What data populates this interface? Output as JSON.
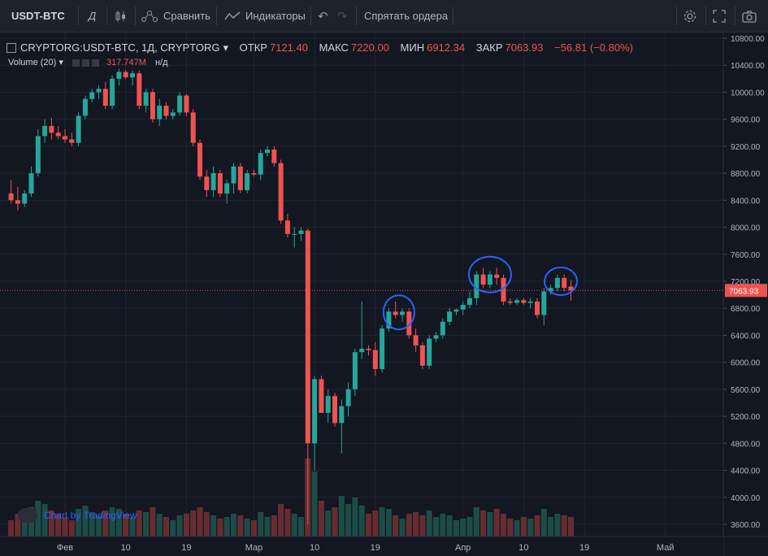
{
  "toolbar": {
    "symbol": "USDT-BTC",
    "interval": "Д",
    "compare_label": "Сравнить",
    "indicators_label": "Индикаторы",
    "hide_orders_label": "Спрятать ордера"
  },
  "legend": {
    "title": "CRYPTORG:USDT-BTC, 1Д, CRYPTORG",
    "open_label": "ОТКР",
    "open": "7121.40",
    "high_label": "МАКС",
    "high": "7220.00",
    "low_label": "МИН",
    "low": "6912.34",
    "close_label": "ЗАКР",
    "close": "7063.93",
    "change": "−56.81 (−0.80%)"
  },
  "volume_legend": {
    "label": "Volume (20)",
    "value": "317.747M",
    "na": "н/д"
  },
  "watermark": "Chart by TradingView",
  "colors": {
    "up": "#26a69a",
    "down": "#ef5350",
    "background": "#131722",
    "annotation": "#2962ff"
  },
  "chart_data": {
    "type": "candlestick",
    "ylim": [
      3400,
      10900
    ],
    "yticks": [
      3600,
      4000,
      4400,
      4800,
      5200,
      5600,
      6000,
      6400,
      6800,
      7200,
      7600,
      8000,
      8400,
      8800,
      9200,
      9600,
      10000,
      10400,
      10800
    ],
    "ytick_labels": [
      "3600.00",
      "4000.00",
      "4400.00",
      "4800.00",
      "5200.00",
      "5600.00",
      "6000.00",
      "6400.00",
      "6800.00",
      "7200.00",
      "7600.00",
      "8000.00",
      "8400.00",
      "8800.00",
      "9200.00",
      "9600.00",
      "10000.00",
      "10400.00",
      "10800.00"
    ],
    "xticks": [
      {
        "label": "Фев",
        "day": 0
      },
      {
        "label": "10",
        "day": 9
      },
      {
        "label": "19",
        "day": 18
      },
      {
        "label": "Мар",
        "day": 28
      },
      {
        "label": "10",
        "day": 37
      },
      {
        "label": "19",
        "day": 46
      },
      {
        "label": "Апр",
        "day": 59
      },
      {
        "label": "10",
        "day": 68
      },
      {
        "label": "19",
        "day": 77
      },
      {
        "label": "Май",
        "day": 89
      }
    ],
    "current_price": 7063.93,
    "current_price_label": "7063.93",
    "candles": [
      {
        "day": -8,
        "o": 8500,
        "h": 8700,
        "l": 8350,
        "c": 8400,
        "v": 10
      },
      {
        "day": -7,
        "o": 8400,
        "h": 8600,
        "l": 8250,
        "c": 8350,
        "v": 14
      },
      {
        "day": -6,
        "o": 8350,
        "h": 8550,
        "l": 8300,
        "c": 8500,
        "v": 12
      },
      {
        "day": -5,
        "o": 8500,
        "h": 8900,
        "l": 8450,
        "c": 8800,
        "v": 18
      },
      {
        "day": -4,
        "o": 8800,
        "h": 9450,
        "l": 8750,
        "c": 9350,
        "v": 22
      },
      {
        "day": -3,
        "o": 9350,
        "h": 9600,
        "l": 9250,
        "c": 9500,
        "v": 20
      },
      {
        "day": -2,
        "o": 9500,
        "h": 9620,
        "l": 9300,
        "c": 9400,
        "v": 16
      },
      {
        "day": -1,
        "o": 9400,
        "h": 9500,
        "l": 9300,
        "c": 9350,
        "v": 14
      },
      {
        "day": 0,
        "o": 9350,
        "h": 9450,
        "l": 9250,
        "c": 9300,
        "v": 12
      },
      {
        "day": 1,
        "o": 9300,
        "h": 9400,
        "l": 9200,
        "c": 9250,
        "v": 10
      },
      {
        "day": 2,
        "o": 9250,
        "h": 9700,
        "l": 9200,
        "c": 9650,
        "v": 17
      },
      {
        "day": 3,
        "o": 9650,
        "h": 9950,
        "l": 9600,
        "c": 9900,
        "v": 19
      },
      {
        "day": 4,
        "o": 9900,
        "h": 10050,
        "l": 9850,
        "c": 10000,
        "v": 15
      },
      {
        "day": 5,
        "o": 10000,
        "h": 10100,
        "l": 9900,
        "c": 10050,
        "v": 13
      },
      {
        "day": 6,
        "o": 10050,
        "h": 10150,
        "l": 9750,
        "c": 9800,
        "v": 16
      },
      {
        "day": 7,
        "o": 9800,
        "h": 10250,
        "l": 9750,
        "c": 10200,
        "v": 18
      },
      {
        "day": 8,
        "o": 10200,
        "h": 10350,
        "l": 10100,
        "c": 10300,
        "v": 17
      },
      {
        "day": 9,
        "o": 10300,
        "h": 10330,
        "l": 10200,
        "c": 10220,
        "v": 14
      },
      {
        "day": 10,
        "o": 10220,
        "h": 10320,
        "l": 10100,
        "c": 10280,
        "v": 12
      },
      {
        "day": 11,
        "o": 10280,
        "h": 10320,
        "l": 9750,
        "c": 9800,
        "v": 16
      },
      {
        "day": 12,
        "o": 9800,
        "h": 10050,
        "l": 9700,
        "c": 10000,
        "v": 15
      },
      {
        "day": 13,
        "o": 10000,
        "h": 10050,
        "l": 9550,
        "c": 9600,
        "v": 18
      },
      {
        "day": 14,
        "o": 9600,
        "h": 9900,
        "l": 9500,
        "c": 9800,
        "v": 14
      },
      {
        "day": 15,
        "o": 9800,
        "h": 9850,
        "l": 9600,
        "c": 9650,
        "v": 12
      },
      {
        "day": 16,
        "o": 9650,
        "h": 9750,
        "l": 9600,
        "c": 9700,
        "v": 10
      },
      {
        "day": 17,
        "o": 9700,
        "h": 10000,
        "l": 9650,
        "c": 9950,
        "v": 13
      },
      {
        "day": 18,
        "o": 9950,
        "h": 9970,
        "l": 9650,
        "c": 9700,
        "v": 14
      },
      {
        "day": 19,
        "o": 9700,
        "h": 9750,
        "l": 9200,
        "c": 9250,
        "v": 16
      },
      {
        "day": 20,
        "o": 9250,
        "h": 9300,
        "l": 8700,
        "c": 8750,
        "v": 18
      },
      {
        "day": 21,
        "o": 8750,
        "h": 8850,
        "l": 8450,
        "c": 8550,
        "v": 15
      },
      {
        "day": 22,
        "o": 8550,
        "h": 8900,
        "l": 8450,
        "c": 8800,
        "v": 13
      },
      {
        "day": 23,
        "o": 8800,
        "h": 8850,
        "l": 8450,
        "c": 8500,
        "v": 11
      },
      {
        "day": 24,
        "o": 8500,
        "h": 8700,
        "l": 8350,
        "c": 8650,
        "v": 12
      },
      {
        "day": 25,
        "o": 8650,
        "h": 8950,
        "l": 8500,
        "c": 8900,
        "v": 14
      },
      {
        "day": 26,
        "o": 8900,
        "h": 8950,
        "l": 8500,
        "c": 8550,
        "v": 13
      },
      {
        "day": 27,
        "o": 8550,
        "h": 8850,
        "l": 8500,
        "c": 8800,
        "v": 11
      },
      {
        "day": 28,
        "o": 8800,
        "h": 8850,
        "l": 8750,
        "c": 8780,
        "v": 10
      },
      {
        "day": 29,
        "o": 8780,
        "h": 9150,
        "l": 8700,
        "c": 9100,
        "v": 15
      },
      {
        "day": 30,
        "o": 9100,
        "h": 9200,
        "l": 9050,
        "c": 9150,
        "v": 12
      },
      {
        "day": 31,
        "o": 9150,
        "h": 9200,
        "l": 8900,
        "c": 8950,
        "v": 13
      },
      {
        "day": 32,
        "o": 8950,
        "h": 9000,
        "l": 8050,
        "c": 8100,
        "v": 20
      },
      {
        "day": 33,
        "o": 8100,
        "h": 8200,
        "l": 7850,
        "c": 7900,
        "v": 17
      },
      {
        "day": 34,
        "o": 7900,
        "h": 8000,
        "l": 7700,
        "c": 7900,
        "v": 14
      },
      {
        "day": 35,
        "o": 7900,
        "h": 8000,
        "l": 7800,
        "c": 7950,
        "v": 12
      },
      {
        "day": 36,
        "o": 7950,
        "h": 7980,
        "l": 3600,
        "c": 4800,
        "v": 48
      },
      {
        "day": 37,
        "o": 4800,
        "h": 5800,
        "l": 4400,
        "c": 5750,
        "v": 40
      },
      {
        "day": 38,
        "o": 5750,
        "h": 5800,
        "l": 5250,
        "c": 5250,
        "v": 22
      },
      {
        "day": 39,
        "o": 5250,
        "h": 5600,
        "l": 5100,
        "c": 5500,
        "v": 16
      },
      {
        "day": 40,
        "o": 5500,
        "h": 5550,
        "l": 5050,
        "c": 5100,
        "v": 18
      },
      {
        "day": 41,
        "o": 5100,
        "h": 5450,
        "l": 4650,
        "c": 5350,
        "v": 25
      },
      {
        "day": 42,
        "o": 5350,
        "h": 5700,
        "l": 5200,
        "c": 5600,
        "v": 20
      },
      {
        "day": 43,
        "o": 5600,
        "h": 6200,
        "l": 5500,
        "c": 6150,
        "v": 24
      },
      {
        "day": 44,
        "o": 6150,
        "h": 6900,
        "l": 6050,
        "c": 6200,
        "v": 19
      },
      {
        "day": 45,
        "o": 6200,
        "h": 6250,
        "l": 6100,
        "c": 6180,
        "v": 14
      },
      {
        "day": 46,
        "o": 6180,
        "h": 6300,
        "l": 5800,
        "c": 5900,
        "v": 16
      },
      {
        "day": 47,
        "o": 5900,
        "h": 6550,
        "l": 5850,
        "c": 6500,
        "v": 18
      },
      {
        "day": 48,
        "o": 6500,
        "h": 6800,
        "l": 6450,
        "c": 6750,
        "v": 17
      },
      {
        "day": 49,
        "o": 6750,
        "h": 6900,
        "l": 6650,
        "c": 6700,
        "v": 13
      },
      {
        "day": 50,
        "o": 6700,
        "h": 6800,
        "l": 6600,
        "c": 6750,
        "v": 11
      },
      {
        "day": 51,
        "o": 6750,
        "h": 6800,
        "l": 6350,
        "c": 6400,
        "v": 14
      },
      {
        "day": 52,
        "o": 6400,
        "h": 6500,
        "l": 6150,
        "c": 6250,
        "v": 15
      },
      {
        "day": 53,
        "o": 6250,
        "h": 6300,
        "l": 5900,
        "c": 5950,
        "v": 13
      },
      {
        "day": 54,
        "o": 5950,
        "h": 6400,
        "l": 5900,
        "c": 6350,
        "v": 16
      },
      {
        "day": 55,
        "o": 6350,
        "h": 6450,
        "l": 6300,
        "c": 6400,
        "v": 12
      },
      {
        "day": 56,
        "o": 6400,
        "h": 6650,
        "l": 6350,
        "c": 6600,
        "v": 14
      },
      {
        "day": 57,
        "o": 6600,
        "h": 6800,
        "l": 6550,
        "c": 6750,
        "v": 13
      },
      {
        "day": 58,
        "o": 6750,
        "h": 6800,
        "l": 6700,
        "c": 6780,
        "v": 10
      },
      {
        "day": 59,
        "o": 6780,
        "h": 6900,
        "l": 6700,
        "c": 6850,
        "v": 11
      },
      {
        "day": 60,
        "o": 6850,
        "h": 7050,
        "l": 6800,
        "c": 6950,
        "v": 12
      },
      {
        "day": 61,
        "o": 6950,
        "h": 7350,
        "l": 6850,
        "c": 7300,
        "v": 18
      },
      {
        "day": 62,
        "o": 7300,
        "h": 7400,
        "l": 7100,
        "c": 7150,
        "v": 16
      },
      {
        "day": 63,
        "o": 7150,
        "h": 7350,
        "l": 7100,
        "c": 7300,
        "v": 15
      },
      {
        "day": 64,
        "o": 7300,
        "h": 7400,
        "l": 7150,
        "c": 7250,
        "v": 17
      },
      {
        "day": 65,
        "o": 7250,
        "h": 7300,
        "l": 6850,
        "c": 6900,
        "v": 14
      },
      {
        "day": 66,
        "o": 6900,
        "h": 6950,
        "l": 6850,
        "c": 6880,
        "v": 11
      },
      {
        "day": 67,
        "o": 6880,
        "h": 6950,
        "l": 6850,
        "c": 6920,
        "v": 10
      },
      {
        "day": 68,
        "o": 6920,
        "h": 6950,
        "l": 6850,
        "c": 6880,
        "v": 12
      },
      {
        "day": 69,
        "o": 6880,
        "h": 6950,
        "l": 6800,
        "c": 6900,
        "v": 11
      },
      {
        "day": 70,
        "o": 6900,
        "h": 6950,
        "l": 6650,
        "c": 6700,
        "v": 13
      },
      {
        "day": 71,
        "o": 6700,
        "h": 7100,
        "l": 6550,
        "c": 7050,
        "v": 17
      },
      {
        "day": 72,
        "o": 7050,
        "h": 7150,
        "l": 7000,
        "c": 7100,
        "v": 12
      },
      {
        "day": 73,
        "o": 7100,
        "h": 7300,
        "l": 7050,
        "c": 7250,
        "v": 14
      },
      {
        "day": 74,
        "o": 7250,
        "h": 7300,
        "l": 7050,
        "c": 7100,
        "v": 13
      },
      {
        "day": 75,
        "o": 7121.4,
        "h": 7220.0,
        "l": 6912.34,
        "c": 7063.93,
        "v": 12
      }
    ]
  }
}
